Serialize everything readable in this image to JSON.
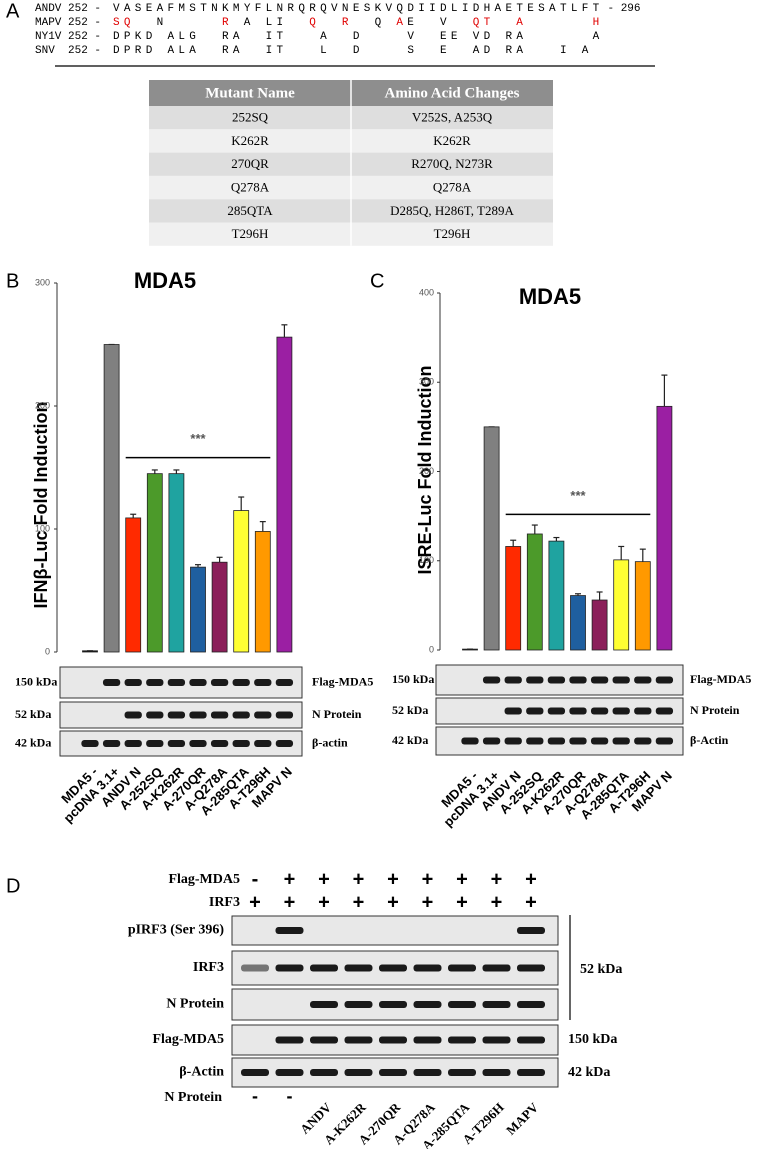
{
  "panel_a": {
    "label": "A",
    "alignment": [
      {
        "prefix": "ANDV 252 -",
        "segments": [
          {
            "text": "VASEAFMSTNKMYFLNRQRQVNESKVQDIIDLIDHAETESATLFT",
            "color": "#000000"
          }
        ],
        "suffix": "- 296"
      },
      {
        "prefix": "MAPV 252 -",
        "segments": [
          {
            "text": "SQ",
            "color": "#e00000"
          },
          {
            "text": "  N     ",
            "color": "#000000"
          },
          {
            "text": "R",
            "color": "#e00000"
          },
          {
            "text": " A LI  ",
            "color": "#000000"
          },
          {
            "text": "Q",
            "color": "#e00000"
          },
          {
            "text": "  ",
            "color": "#000000"
          },
          {
            "text": "R",
            "color": "#e00000"
          },
          {
            "text": "  Q ",
            "color": "#000000"
          },
          {
            "text": "A",
            "color": "#e00000"
          },
          {
            "text": "E  V  ",
            "color": "#000000"
          },
          {
            "text": "QT",
            "color": "#e00000"
          },
          {
            "text": "  ",
            "color": "#000000"
          },
          {
            "text": "A",
            "color": "#e00000"
          },
          {
            "text": "      ",
            "color": "#000000"
          },
          {
            "text": "H",
            "color": "#e00000"
          }
        ]
      },
      {
        "prefix": "NY1V 252 -",
        "segments": [
          {
            "text": "DPKD ALG  RA  IT   A  D    V  EE VD RA      A",
            "color": "#000000"
          }
        ]
      },
      {
        "prefix": "SNV  252 -",
        "segments": [
          {
            "text": "DPRD ALA  RA  IT   L  D    S  E  AD RA   I A",
            "color": "#000000"
          }
        ]
      }
    ],
    "table": {
      "header": [
        "Mutant Name",
        "Amino Acid Changes"
      ],
      "rows": [
        [
          "252SQ",
          "V252S, A253Q"
        ],
        [
          "K262R",
          "K262R"
        ],
        [
          "270QR",
          "R270Q, N273R"
        ],
        [
          "Q278A",
          "Q278A"
        ],
        [
          "285QTA",
          "D285Q, H286T, T289A"
        ],
        [
          "T296H",
          "T296H"
        ]
      ]
    }
  },
  "chart_data": [
    {
      "type": "bar",
      "panel_label": "B",
      "title": "MDA5",
      "y_label": "IFNβ-Luc  Fold Induction",
      "categories": [
        "MDA5 -",
        "pcDNA 3.1+",
        "ANDV N",
        "A-252SQ",
        "A-K262R",
        "A-270QR",
        "A-Q278A",
        "A-285QTA",
        "A-T296H",
        "MAPV N"
      ],
      "values": [
        1,
        250,
        109,
        145,
        145,
        69,
        73,
        115,
        98,
        256
      ],
      "errors": [
        0,
        0,
        3,
        3,
        3,
        2,
        4,
        11,
        8,
        10
      ],
      "colors": [
        "#111111",
        "#808080",
        "#ff2a00",
        "#4c9a2a",
        "#1fa3a0",
        "#1f5f9f",
        "#8b1f5a",
        "#ffff33",
        "#ff9900",
        "#9b1fa3"
      ],
      "ylim": [
        0,
        300
      ],
      "yticks": [
        0,
        100,
        200,
        300
      ],
      "annotations": [
        {
          "text": "***",
          "from": "ANDV N",
          "to": "A-T296H",
          "y": 158
        }
      ],
      "blot": {
        "sizes": [
          "150 kDa",
          "52 kDa",
          "42 kDa"
        ],
        "proteins": [
          "Flag-MDA5",
          "N Protein",
          "β-actin"
        ]
      }
    },
    {
      "type": "bar",
      "panel_label": "C",
      "title": "MDA5",
      "y_label": "ISRE-Luc Fold Induction",
      "categories": [
        "MDA5 -",
        "pcDNA 3.1+",
        "ANDV N",
        "A-252SQ",
        "A-K262R",
        "A-270QR",
        "A-Q278A",
        "A-285QTA",
        "A-T296H",
        "MAPV N"
      ],
      "values": [
        1,
        250,
        116,
        130,
        122,
        61,
        56,
        101,
        99,
        273
      ],
      "errors": [
        0,
        0,
        7,
        10,
        4,
        2,
        9,
        15,
        14,
        35
      ],
      "colors": [
        "#111111",
        "#808080",
        "#ff2a00",
        "#4c9a2a",
        "#1fa3a0",
        "#1f5f9f",
        "#8b1f5a",
        "#ffff33",
        "#ff9900",
        "#9b1fa3"
      ],
      "ylim": [
        0,
        400
      ],
      "yticks": [
        0,
        100,
        200,
        300,
        400
      ],
      "annotations": [
        {
          "text": "***",
          "from": "ANDV N",
          "to": "A-T296H",
          "y": 152
        }
      ],
      "blot": {
        "sizes": [
          "150 kDa",
          "52 kDa",
          "42 kDa"
        ],
        "proteins": [
          "Flag-MDA5",
          "N Protein",
          "β-Actin"
        ]
      }
    }
  ],
  "panel_d": {
    "label": "D",
    "flag_mda5_label": "Flag-MDA5",
    "flag_mda5": [
      "-",
      "+",
      "+",
      "+",
      "+",
      "+",
      "+",
      "+",
      "+"
    ],
    "irf3_label": "IRF3",
    "irf3": [
      "+",
      "+",
      "+",
      "+",
      "+",
      "+",
      "+",
      "+",
      "+"
    ],
    "blots": [
      "pIRF3 (Ser 396)",
      "IRF3",
      "N Protein",
      "Flag-MDA5",
      "β-Actin"
    ],
    "sizes": [
      "52 kDa",
      "150 kDa",
      "42 kDa"
    ],
    "n_protein_label": "N Protein",
    "n_protein": [
      "-",
      "-",
      "ANDV",
      "A-K262R",
      "A-270QR",
      "A-Q278A",
      "A-285QTA",
      "A-T296H",
      "MAPV"
    ]
  }
}
